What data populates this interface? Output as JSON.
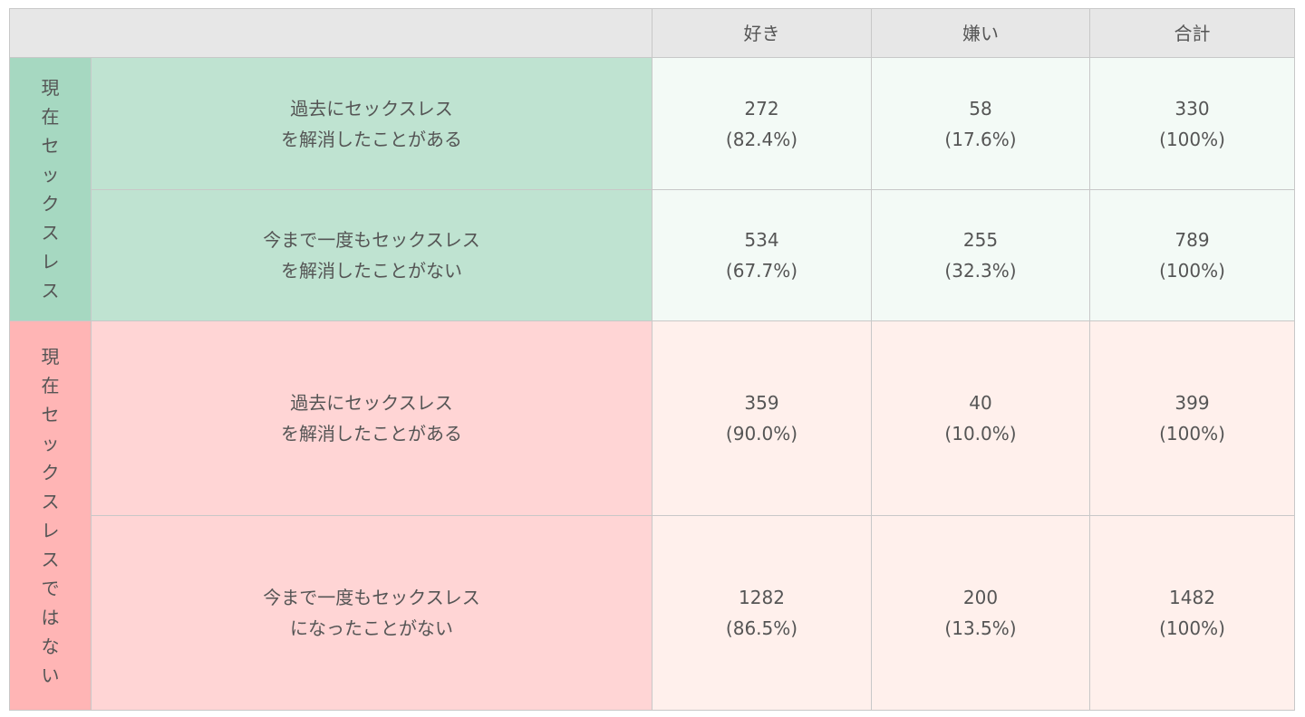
{
  "header": {
    "blank": "",
    "columns": [
      "好き",
      "嫌い",
      "合計"
    ]
  },
  "groups": [
    {
      "label": "現在セックスレス",
      "color": "#a6d8c1",
      "rows": [
        {
          "label1": "過去にセックスレス",
          "label2": "を解消したことがある",
          "cells": [
            [
              "272",
              "(82.4%)"
            ],
            [
              "58",
              "(17.6%)"
            ],
            [
              "330",
              "(100%)"
            ]
          ]
        },
        {
          "label1": "今まで一度もセックスレス",
          "label2": "を解消したことがない",
          "cells": [
            [
              "534",
              "(67.7%)"
            ],
            [
              "255",
              "(32.3%)"
            ],
            [
              "789",
              "(100%)"
            ]
          ]
        }
      ]
    },
    {
      "label": "現在セックスレスではない",
      "color": "#ffb5b5",
      "rows": [
        {
          "label1": "過去にセックスレス",
          "label2": "を解消したことがある",
          "cells": [
            [
              "359",
              "(90.0%)"
            ],
            [
              "40",
              "(10.0%)"
            ],
            [
              "399",
              "(100%)"
            ]
          ]
        },
        {
          "label1": "今まで一度もセックスレス",
          "label2": "になったことがない",
          "cells": [
            [
              "1282",
              "(86.5%)"
            ],
            [
              "200",
              "(13.5%)"
            ],
            [
              "1482",
              "(100%)"
            ]
          ]
        }
      ]
    }
  ]
}
